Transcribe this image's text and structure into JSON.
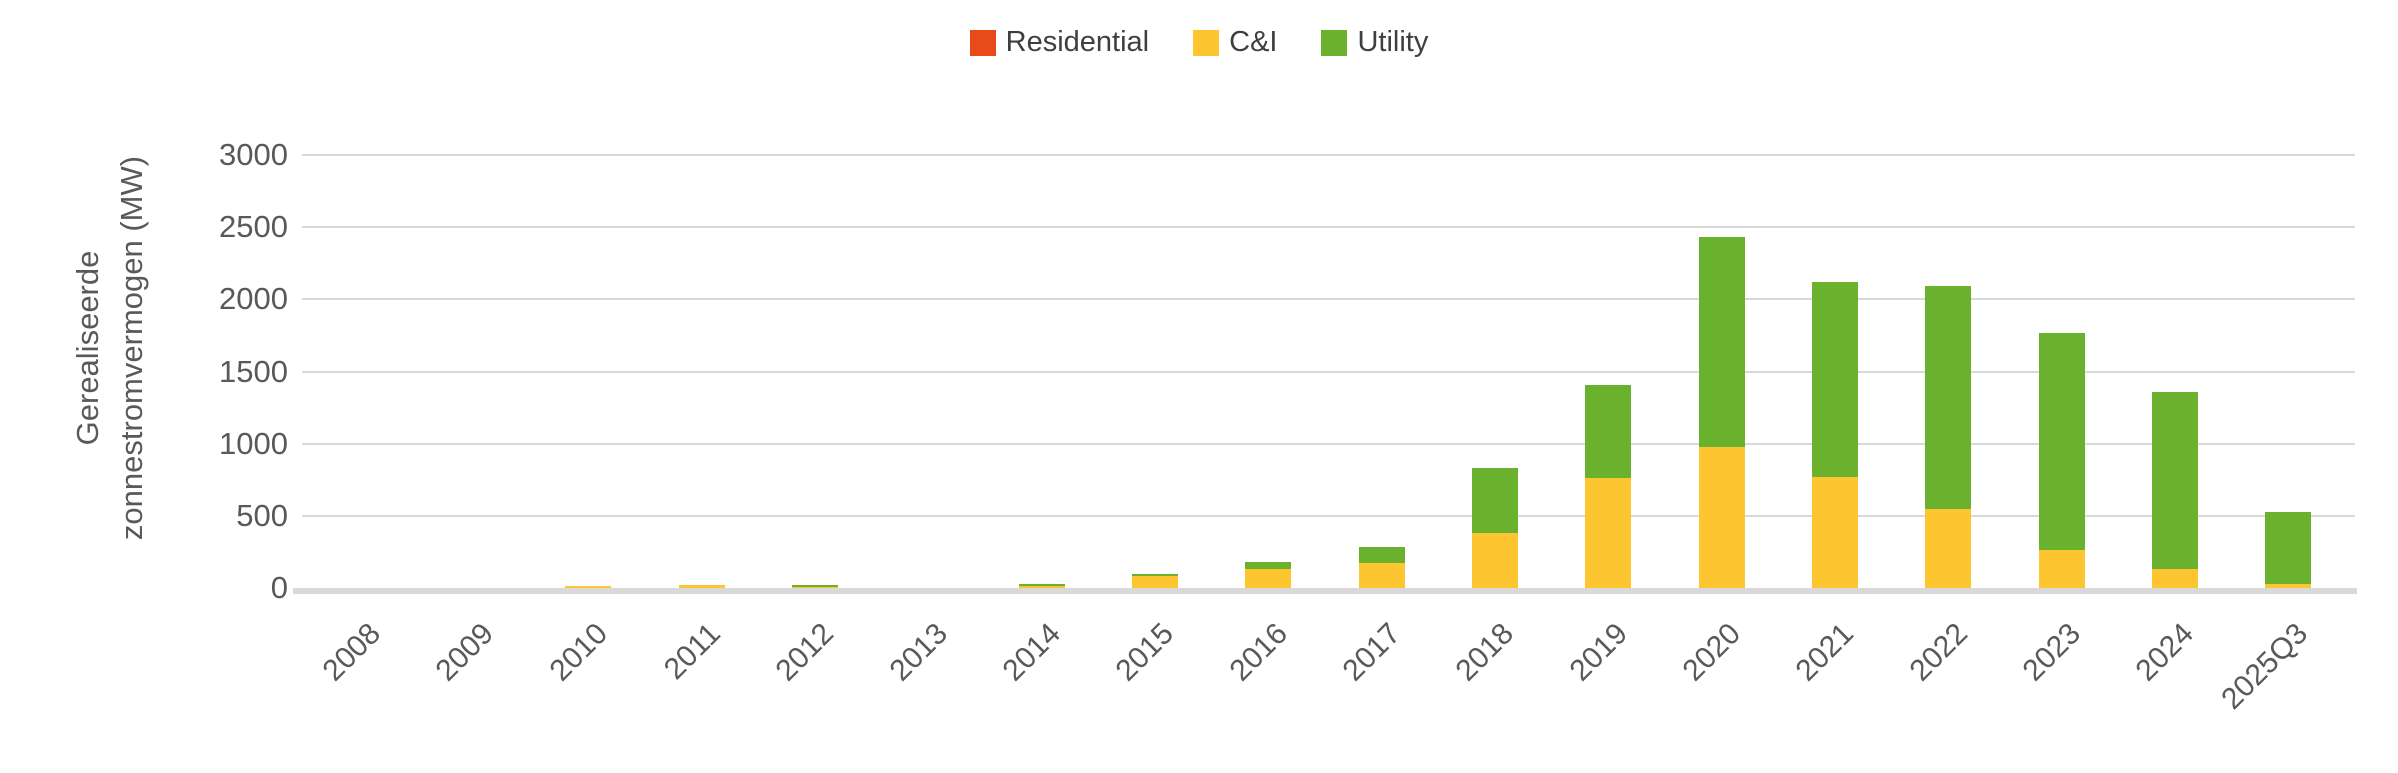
{
  "chart_data": {
    "type": "bar",
    "stacked": true,
    "title": "",
    "categories": [
      "2008",
      "2009",
      "2010",
      "2011",
      "2012",
      "2013",
      "2014",
      "2015",
      "2016",
      "2017",
      "2018",
      "2019",
      "2020",
      "2021",
      "2022",
      "2023",
      "2024",
      "2025Q3"
    ],
    "series": [
      {
        "name": "Residential",
        "color": "#e84a19",
        "values": [
          0,
          0,
          0,
          0,
          0,
          0,
          0,
          0,
          0,
          0,
          0,
          0,
          0,
          0,
          0,
          0,
          0,
          0
        ]
      },
      {
        "name": "C&I",
        "color": "#fdc630",
        "values": [
          0,
          0,
          15,
          20,
          10,
          0,
          17,
          85,
          130,
          170,
          380,
          760,
          975,
          770,
          545,
          260,
          135,
          30
        ]
      },
      {
        "name": "Utility",
        "color": "#6ab12e",
        "values": [
          0,
          0,
          0,
          0,
          10,
          0,
          8,
          15,
          47,
          112,
          450,
          650,
          1460,
          1350,
          1550,
          1510,
          1225,
          495
        ]
      }
    ],
    "totals": [
      0,
      0,
      15,
      20,
      20,
      0,
      25,
      100,
      177,
      282,
      830,
      1410,
      2435,
      2120,
      2095,
      1770,
      1360,
      525
    ],
    "xlabel": "",
    "ylabel": "Gerealiseerde zonnestromvermogen (MW)",
    "ylabel_lines": [
      "Gerealiseerde",
      "zonnestromvermogen (MW)"
    ],
    "ylim": [
      0,
      3000
    ],
    "yticks": [
      0,
      500,
      1000,
      1500,
      2000,
      2500,
      3000
    ],
    "grid": "horizontal",
    "legend_position": "top"
  },
  "colors": {
    "background": "#ffffff",
    "gridline": "#d9d9d9",
    "axis_line": "#d9d9d9",
    "tick_text": "#595959",
    "legend_text": "#3f3f3f",
    "residential": "#e84a19",
    "ci": "#fdc630",
    "utility": "#6ab12e"
  }
}
